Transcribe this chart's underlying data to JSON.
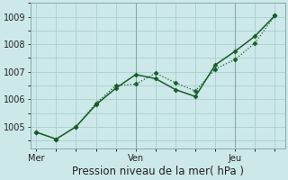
{
  "title": "",
  "xlabel": "Pression niveau de la mer( hPa )",
  "bg_color": "#cce8e8",
  "grid_color": "#aacece",
  "line_color": "#1a5c28",
  "line1_x": [
    0,
    1,
    2,
    3,
    4,
    5,
    6,
    7,
    8,
    9,
    10,
    11,
    12
  ],
  "line1_y": [
    1004.8,
    1004.55,
    1005.0,
    1005.8,
    1006.4,
    1006.9,
    1006.75,
    1006.35,
    1006.1,
    1007.25,
    1007.75,
    1008.3,
    1009.05
  ],
  "line2_x": [
    0,
    1,
    2,
    3,
    4,
    5,
    6,
    7,
    8,
    9,
    10,
    11,
    12
  ],
  "line2_y": [
    1004.8,
    1004.55,
    1005.0,
    1005.85,
    1006.5,
    1006.55,
    1006.95,
    1006.6,
    1006.3,
    1007.1,
    1007.45,
    1008.05,
    1009.05
  ],
  "xtick_positions": [
    0,
    5,
    10
  ],
  "xtick_labels": [
    "Mer",
    "Ven",
    "Jeu"
  ],
  "ytick_positions": [
    1005,
    1006,
    1007,
    1008,
    1009
  ],
  "ytick_labels": [
    "1005",
    "1006",
    "1007",
    "1008",
    "1009"
  ],
  "ylim": [
    1004.2,
    1009.5
  ],
  "xlim": [
    -0.3,
    12.5
  ],
  "vline_x": [
    5,
    10
  ],
  "vline_color": "#88aaaa",
  "xlabel_fontsize": 8.5,
  "tick_fontsize": 7
}
